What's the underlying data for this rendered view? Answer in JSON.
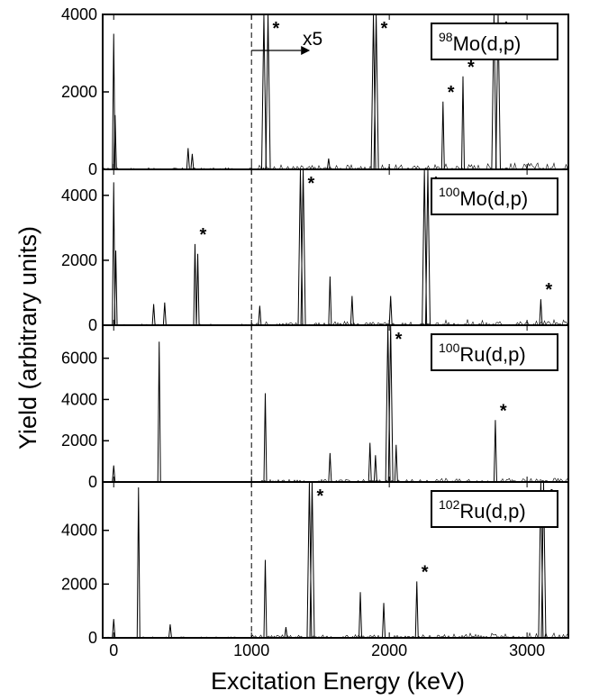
{
  "figure": {
    "ylabel": "Yield (arbitrary units)",
    "xlabel": "Excitation Energy (keV)",
    "x_tick_labels": [
      "0",
      "1000",
      "2000",
      "3000"
    ],
    "scale_annotation": "x5"
  },
  "chart_data": [
    {
      "type": "line",
      "reaction_mass": "98",
      "reaction_name": "Mo(d,p)",
      "xlim": [
        -80,
        3300
      ],
      "ylim": [
        0,
        4000
      ],
      "yticks": [
        0,
        2000,
        4000
      ],
      "y_tick_labels": [
        "0",
        "2000",
        "4000"
      ],
      "scale_factor_above_keV": 1000,
      "scale_factor": 5,
      "peaks": [
        {
          "x": 0,
          "y": 3500
        },
        {
          "x": 10,
          "y": 1400
        },
        {
          "x": 540,
          "y": 550
        },
        {
          "x": 570,
          "y": 400
        },
        {
          "x": 1090,
          "y": 4000
        },
        {
          "x": 1120,
          "y": 4000,
          "starred": true
        },
        {
          "x": 1560,
          "y": 280
        },
        {
          "x": 1885,
          "y": 4000
        },
        {
          "x": 1905,
          "y": 4000,
          "starred": true
        },
        {
          "x": 2390,
          "y": 1750,
          "starred": true
        },
        {
          "x": 2535,
          "y": 2400,
          "starred": true
        },
        {
          "x": 2760,
          "y": 4000
        },
        {
          "x": 2790,
          "y": 4000,
          "starred": true
        }
      ]
    },
    {
      "type": "line",
      "reaction_mass": "100",
      "reaction_name": "Mo(d,p)",
      "xlim": [
        -80,
        3300
      ],
      "ylim": [
        0,
        4800
      ],
      "yticks": [
        0,
        2000,
        4000
      ],
      "y_tick_labels": [
        "0",
        "2000",
        "4000"
      ],
      "peaks": [
        {
          "x": 0,
          "y": 4400
        },
        {
          "x": 15,
          "y": 2300
        },
        {
          "x": 290,
          "y": 650
        },
        {
          "x": 370,
          "y": 700
        },
        {
          "x": 590,
          "y": 2500,
          "starred": true
        },
        {
          "x": 610,
          "y": 2200
        },
        {
          "x": 1060,
          "y": 600
        },
        {
          "x": 1355,
          "y": 4800
        },
        {
          "x": 1375,
          "y": 4800,
          "starred": true
        },
        {
          "x": 1570,
          "y": 1500
        },
        {
          "x": 1730,
          "y": 900
        },
        {
          "x": 2010,
          "y": 900
        },
        {
          "x": 2255,
          "y": 4800
        },
        {
          "x": 2280,
          "y": 4800,
          "starred": true
        },
        {
          "x": 3100,
          "y": 800,
          "starred": true
        }
      ]
    },
    {
      "type": "line",
      "reaction_mass": "100",
      "reaction_name": "Ru(d,p)",
      "xlim": [
        -80,
        3300
      ],
      "ylim": [
        0,
        7600
      ],
      "yticks": [
        0,
        2000,
        4000,
        6000
      ],
      "y_tick_labels": [
        "0",
        "2000",
        "4000",
        "6000"
      ],
      "peaks": [
        {
          "x": 0,
          "y": 800
        },
        {
          "x": 330,
          "y": 6800
        },
        {
          "x": 1100,
          "y": 4300
        },
        {
          "x": 1570,
          "y": 1400
        },
        {
          "x": 1860,
          "y": 1900
        },
        {
          "x": 1900,
          "y": 1300
        },
        {
          "x": 1990,
          "y": 7600
        },
        {
          "x": 2010,
          "y": 7600,
          "starred": true
        },
        {
          "x": 2050,
          "y": 1800
        },
        {
          "x": 2770,
          "y": 3000,
          "starred": true
        }
      ]
    },
    {
      "type": "line",
      "reaction_mass": "102",
      "reaction_name": "Ru(d,p)",
      "xlim": [
        -80,
        3300
      ],
      "ylim": [
        0,
        5800
      ],
      "yticks": [
        0,
        2000,
        4000
      ],
      "y_tick_labels": [
        "0",
        "2000",
        "4000"
      ],
      "peaks": [
        {
          "x": 0,
          "y": 700
        },
        {
          "x": 180,
          "y": 5600
        },
        {
          "x": 410,
          "y": 500
        },
        {
          "x": 1100,
          "y": 2900
        },
        {
          "x": 1250,
          "y": 400
        },
        {
          "x": 1420,
          "y": 5800
        },
        {
          "x": 1440,
          "y": 5800,
          "starred": true
        },
        {
          "x": 1790,
          "y": 1700
        },
        {
          "x": 1960,
          "y": 1300
        },
        {
          "x": 2200,
          "y": 2100,
          "starred": true
        },
        {
          "x": 3100,
          "y": 5800
        },
        {
          "x": 3120,
          "y": 5800,
          "starred": true
        }
      ]
    }
  ]
}
